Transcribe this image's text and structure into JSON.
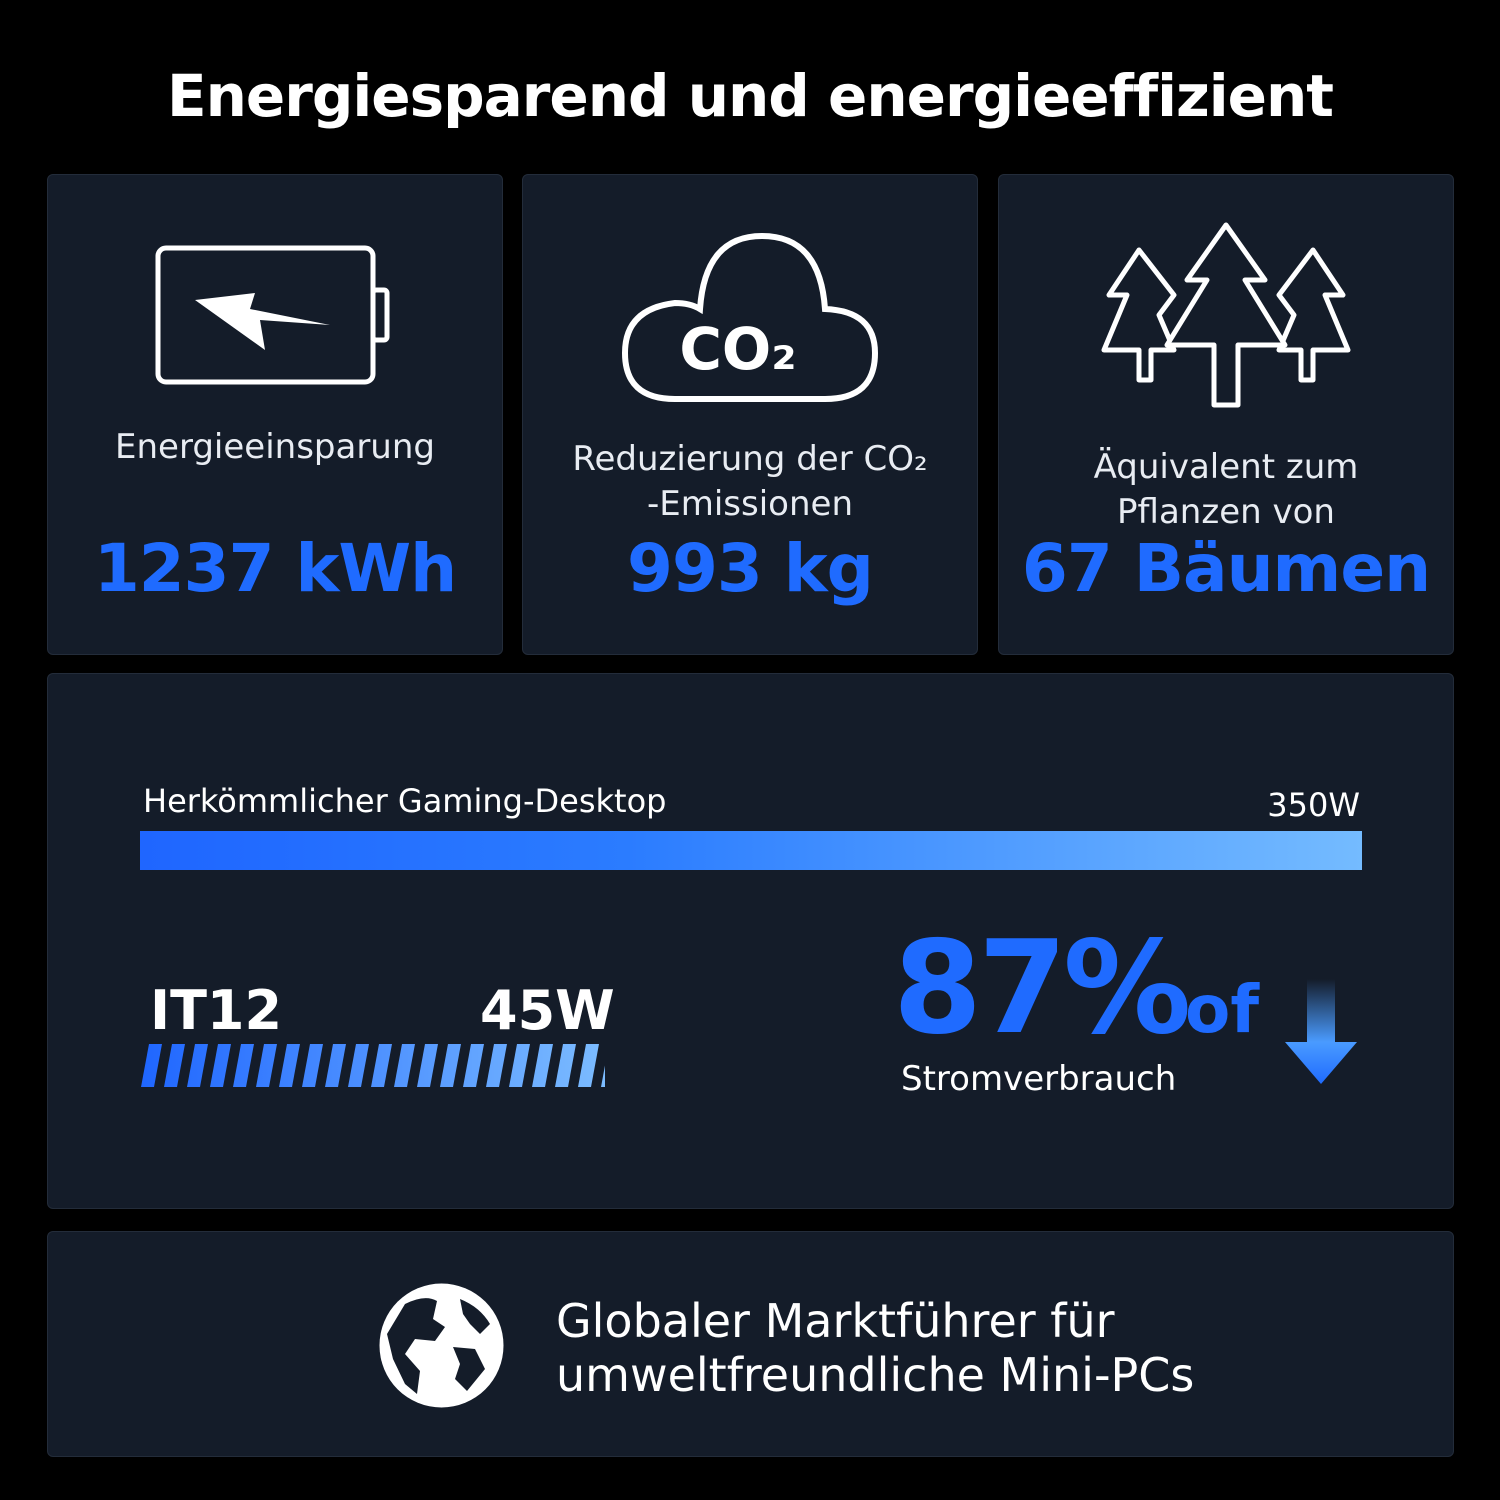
{
  "header": {
    "title": "Energiesparend und energieeffizient"
  },
  "cards": [
    {
      "icon": "battery-lightning-icon",
      "label": "Energieeinsparung",
      "value": "1237 kWh"
    },
    {
      "icon": "co2-cloud-icon",
      "icon_text": "CO₂",
      "label_line1": "Reduzierung der CO₂",
      "label_line2": "-Emissionen",
      "value": "993 kg"
    },
    {
      "icon": "trees-icon",
      "label_line1": "Äquivalent zum",
      "label_line2": "Pflanzen von",
      "value": "67 Bäumen"
    }
  ],
  "comparison": {
    "desktop_label": "Herkömmlicher Gaming-Desktop",
    "desktop_value": "350W",
    "device_label": "IT12",
    "device_value": "45W",
    "reduction": "87%",
    "reduction_suffix": "of",
    "reduction_label": "Stromverbrauch",
    "arrow_icon": "arrow-down-icon"
  },
  "footer": {
    "icon": "globe-icon",
    "line1": "Globaler Marktführer für",
    "line2": "umweltfreundliche Mini-PCs"
  },
  "colors": {
    "accent": "#1f6bff",
    "card_bg": "#141c29",
    "page_bg": "#000000"
  }
}
